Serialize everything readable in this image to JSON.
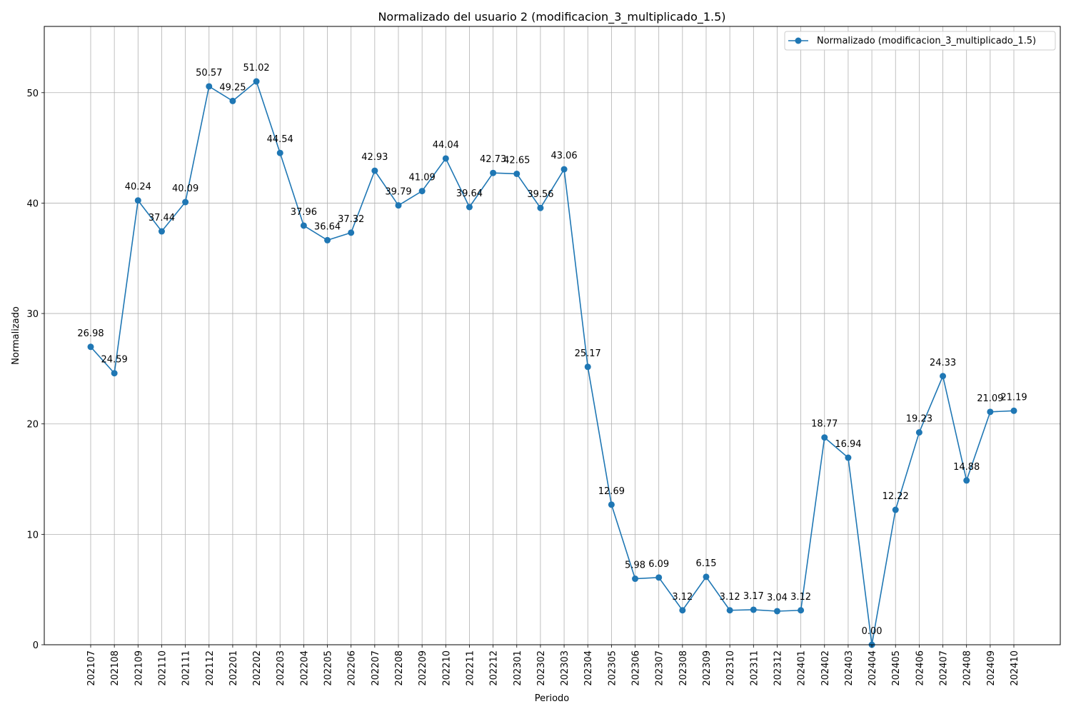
{
  "chart_data": {
    "type": "line",
    "title": "Normalizado del usuario 2 (modificacion_3_multiplicado_1.5)",
    "xlabel": "Periodo",
    "ylabel": "Normalizado",
    "ylim": [
      0,
      56
    ],
    "yticks": [
      0,
      10,
      20,
      30,
      40,
      50
    ],
    "grid": true,
    "legend_position": "top-right",
    "color": "#1f77b4",
    "categories": [
      "202107",
      "202108",
      "202109",
      "202110",
      "202111",
      "202112",
      "202201",
      "202202",
      "202203",
      "202204",
      "202205",
      "202206",
      "202207",
      "202208",
      "202209",
      "202210",
      "202211",
      "202212",
      "202301",
      "202302",
      "202303",
      "202304",
      "202305",
      "202306",
      "202307",
      "202308",
      "202309",
      "202310",
      "202311",
      "202312",
      "202401",
      "202402",
      "202403",
      "202404",
      "202405",
      "202406",
      "202407",
      "202408",
      "202409",
      "202410"
    ],
    "series": [
      {
        "name": "Normalizado (modificacion_3_multiplicado_1.5)",
        "values": [
          26.98,
          24.59,
          40.24,
          37.44,
          40.09,
          50.57,
          49.25,
          51.02,
          44.54,
          37.96,
          36.64,
          37.32,
          42.93,
          39.79,
          41.09,
          44.04,
          39.64,
          42.73,
          42.65,
          39.56,
          43.06,
          25.17,
          12.69,
          5.98,
          6.09,
          3.12,
          6.15,
          3.12,
          3.17,
          3.04,
          3.12,
          18.77,
          16.94,
          0.0,
          12.22,
          19.23,
          24.33,
          14.88,
          21.09,
          21.19
        ],
        "labels": [
          "26.98",
          "24.59",
          "40.24",
          "37.44",
          "40.09",
          "50.57",
          "49.25",
          "51.02",
          "44.54",
          "37.96",
          "36.64",
          "37.32",
          "42.93",
          "39.79",
          "41.09",
          "44.04",
          "39.64",
          "42.73",
          "42.65",
          "39.56",
          "43.06",
          "25.17",
          "12.69",
          "5.98",
          "6.09",
          "3.12",
          "6.15",
          "3.12",
          "3.17",
          "3.04",
          "3.12",
          "18.77",
          "16.94",
          "0.00",
          "12.22",
          "19.23",
          "24.33",
          "14.88",
          "21.09",
          "21.19"
        ]
      }
    ]
  }
}
